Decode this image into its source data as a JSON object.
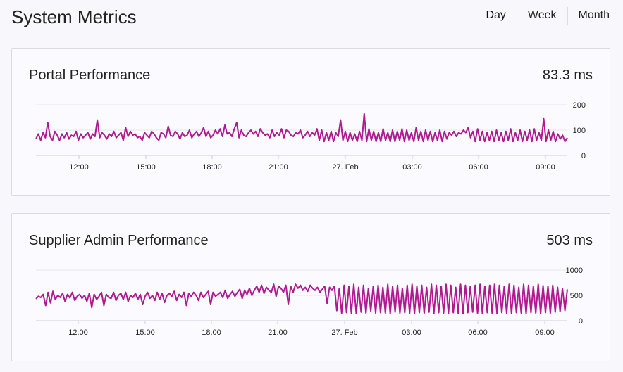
{
  "header": {
    "title": "System Metrics",
    "ranges": [
      "Day",
      "Week",
      "Month"
    ],
    "active_range": "Day"
  },
  "colors": {
    "series": "#b0198f",
    "background": "#f8f8fc",
    "card_border": "#dadae2"
  },
  "chart_data": [
    {
      "type": "line",
      "title": "Portal Performance",
      "current_value": "83.3 ms",
      "x_tick_labels": [
        "12:00",
        "15:00",
        "18:00",
        "21:00",
        "27. Feb",
        "03:00",
        "06:00",
        "09:00"
      ],
      "y_tick_labels": [
        "200",
        "100",
        "0"
      ],
      "ylim": [
        0,
        200
      ],
      "grid": true,
      "series": [
        {
          "values": [
            65,
            85,
            60,
            90,
            70,
            130,
            75,
            60,
            95,
            80,
            60,
            85,
            70,
            90,
            65,
            80,
            75,
            95,
            60,
            85,
            70,
            80,
            90,
            65,
            85,
            75,
            140,
            70,
            90,
            80,
            65,
            85,
            75,
            95,
            70,
            80,
            90,
            60,
            110,
            75,
            95,
            80,
            85,
            70,
            75,
            60,
            90,
            80,
            70,
            95,
            85,
            70,
            60,
            90,
            85,
            70,
            115,
            80,
            75,
            95,
            85,
            65,
            90,
            75,
            80,
            100,
            70,
            85,
            95,
            75,
            90,
            110,
            75,
            95,
            70,
            80,
            100,
            85,
            105,
            75,
            120,
            85,
            90,
            75,
            105,
            130,
            70,
            100,
            80,
            75,
            90,
            100,
            85,
            95,
            75,
            105,
            90,
            80,
            85,
            70,
            100,
            75,
            90,
            80,
            105,
            70,
            100,
            95,
            80,
            75,
            90,
            85,
            100,
            70,
            80,
            95,
            75,
            90,
            80,
            105,
            60,
            100,
            55,
            90,
            60,
            95,
            55,
            90,
            75,
            140,
            60,
            95,
            55,
            90,
            60,
            85,
            55,
            95,
            60,
            165,
            55,
            105,
            60,
            95,
            55,
            90,
            55,
            105,
            60,
            90,
            55,
            100,
            55,
            95,
            60,
            105,
            55,
            100,
            60,
            90,
            55,
            110,
            60,
            95,
            55,
            100,
            60,
            95,
            55,
            90,
            60,
            100,
            55,
            95,
            65,
            90,
            80,
            95,
            75,
            90,
            85,
            100,
            90,
            110,
            70,
            95,
            55,
            105,
            60,
            95,
            55,
            90,
            60,
            95,
            55,
            100,
            60,
            90,
            55,
            95,
            60,
            105,
            55,
            90,
            60,
            100,
            55,
            95,
            60,
            100,
            55,
            105,
            60,
            90,
            60,
            145,
            55,
            100,
            60,
            95,
            55,
            85,
            65,
            80,
            55,
            70
          ]
        }
      ]
    },
    {
      "type": "line",
      "title": "Supplier Admin Performance",
      "current_value": "503 ms",
      "x_tick_labels": [
        "12:00",
        "15:00",
        "18:00",
        "21:00",
        "27. Feb",
        "03:00",
        "06:00",
        "09:00"
      ],
      "y_tick_labels": [
        "1000",
        "500",
        "0"
      ],
      "ylim": [
        0,
        1000
      ],
      "grid": true,
      "series": [
        {
          "values": [
            430,
            480,
            460,
            520,
            300,
            560,
            350,
            580,
            420,
            500,
            460,
            540,
            380,
            520,
            450,
            560,
            400,
            480,
            520,
            440,
            500,
            380,
            540,
            260,
            520,
            420,
            480,
            560,
            300,
            520,
            460,
            440,
            560,
            400,
            500,
            540,
            420,
            560,
            380,
            500,
            460,
            540,
            420,
            520,
            320,
            480,
            560,
            440,
            500,
            400,
            560,
            420,
            540,
            360,
            500,
            540,
            480,
            580,
            400,
            520,
            460,
            560,
            300,
            540,
            480,
            560,
            500,
            400,
            560,
            460,
            520,
            580,
            320,
            560,
            480,
            520,
            560,
            460,
            600,
            440,
            520,
            580,
            480,
            560,
            620,
            440,
            600,
            520,
            640,
            500,
            600,
            680,
            560,
            700,
            540,
            660,
            600,
            560,
            720,
            480,
            680,
            640,
            560,
            700,
            320,
            680,
            560,
            720,
            640,
            700,
            600,
            660,
            580,
            700,
            640,
            600,
            660,
            560,
            620,
            680,
            340,
            660,
            600,
            680,
            200,
            640,
            150,
            700,
            160,
            680,
            150,
            720,
            140,
            660,
            170,
            700,
            150,
            640,
            190,
            680,
            150,
            700,
            160,
            660,
            150,
            720,
            140,
            680,
            170,
            700,
            150,
            640,
            160,
            700,
            150,
            720,
            140,
            680,
            160,
            700,
            150,
            660,
            170,
            720,
            140,
            700,
            160,
            680,
            150,
            720,
            140,
            700,
            160,
            660,
            150,
            720,
            140,
            700,
            160,
            680,
            170,
            700,
            150,
            720,
            140,
            680,
            160,
            700,
            150,
            720,
            140,
            700,
            160,
            680,
            150,
            720,
            140,
            700,
            160,
            660,
            150,
            720,
            140,
            700,
            160,
            680,
            150,
            720,
            140,
            690,
            160,
            680,
            150,
            700,
            170,
            660,
            180,
            640,
            200,
            620
          ]
        }
      ]
    }
  ]
}
